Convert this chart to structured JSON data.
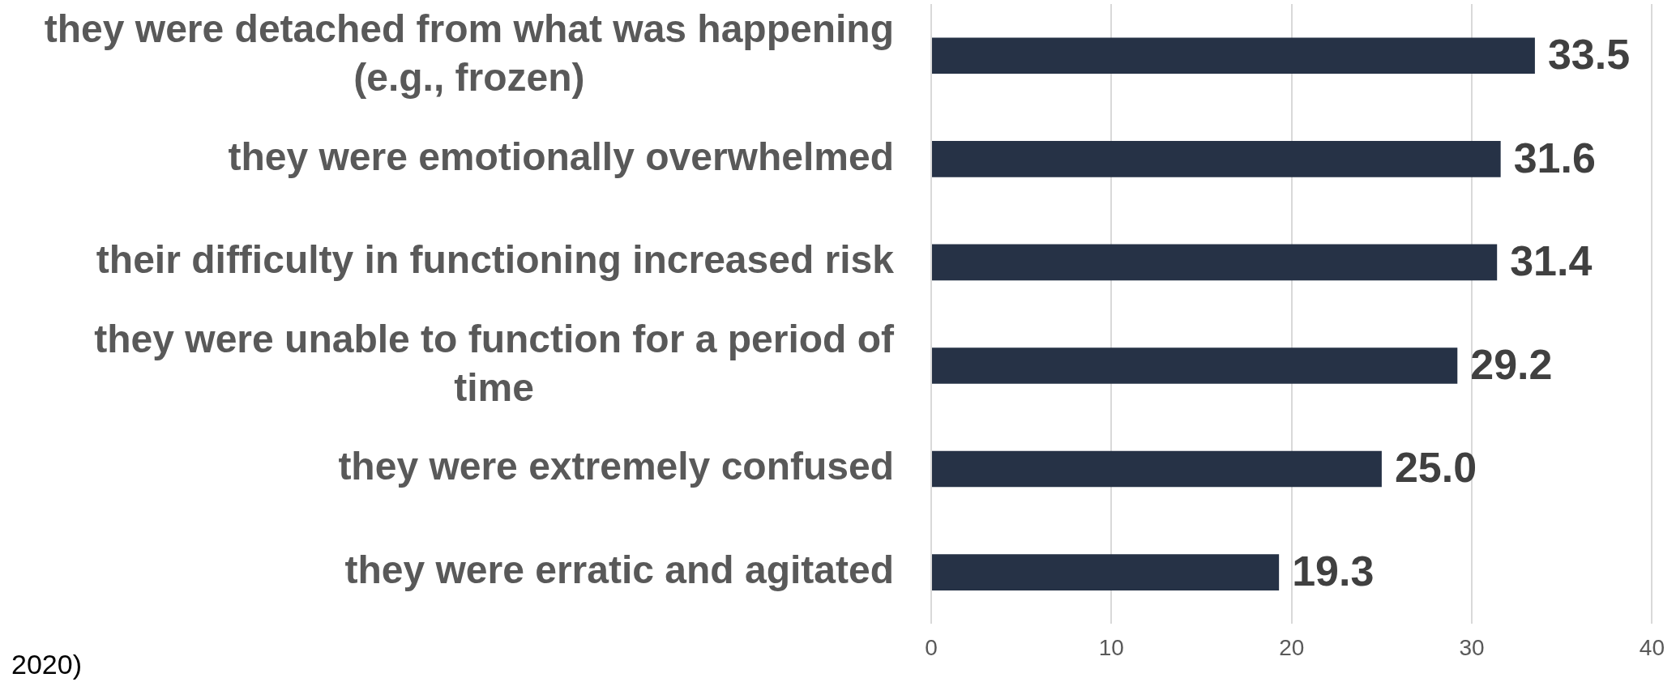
{
  "chart_data": {
    "type": "bar",
    "orientation": "horizontal",
    "categories": [
      "they were detached from what was happening (e.g., frozen)",
      "they were emotionally overwhelmed",
      "their difficulty in functioning increased risk",
      "they were unable to function for a period of time",
      "they were extremely confused",
      "they were erratic and agitated"
    ],
    "values": [
      33.5,
      31.6,
      31.4,
      29.2,
      25.0,
      19.3
    ],
    "value_labels": [
      "33.5",
      "31.6",
      "31.4",
      "29.2",
      "25.0",
      "19.3"
    ],
    "color": "#263246",
    "xlim": [
      0,
      40
    ],
    "xticks": [
      0,
      10,
      20,
      30,
      40
    ],
    "grid": "x",
    "annotations": [
      "2020)"
    ]
  }
}
